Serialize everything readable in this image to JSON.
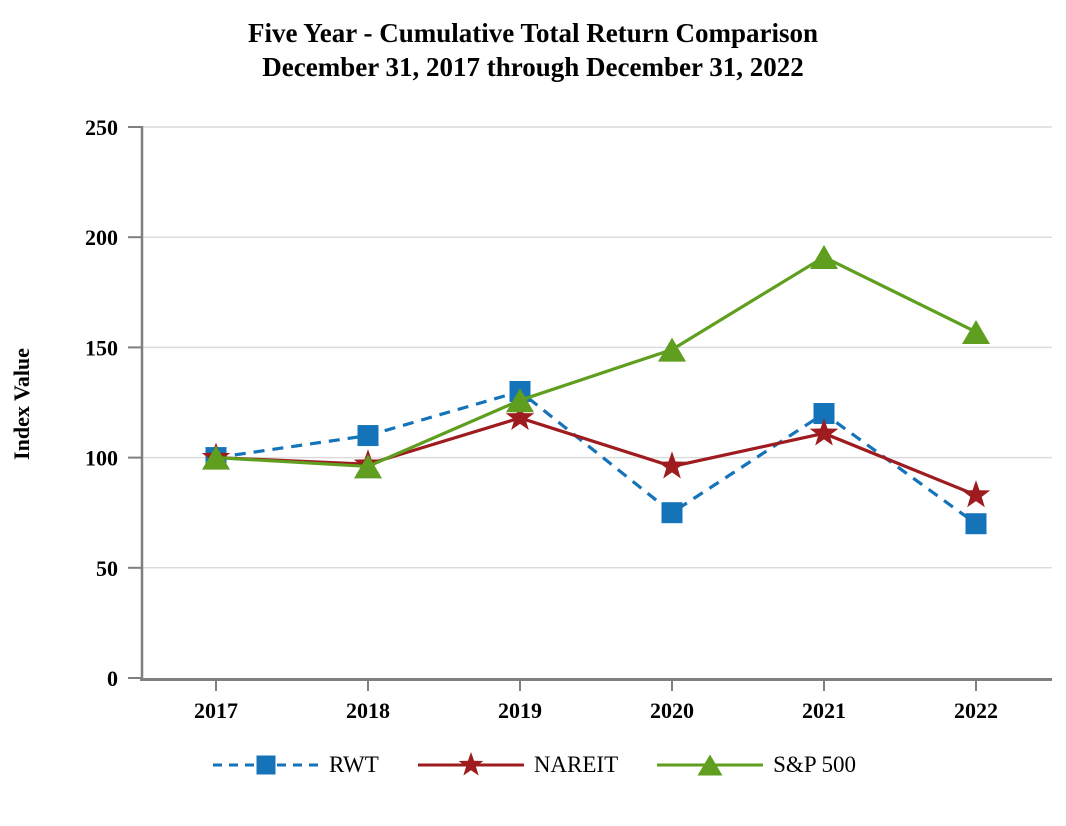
{
  "title": {
    "line1": "Five Year - Cumulative Total Return Comparison",
    "line2": "December 31, 2017 through December 31, 2022"
  },
  "chart_data": {
    "type": "line",
    "categories": [
      "2017",
      "2018",
      "2019",
      "2020",
      "2021",
      "2022"
    ],
    "series": [
      {
        "name": "RWT",
        "values": [
          100,
          110,
          130,
          75,
          120,
          70
        ],
        "color": "#1473b9",
        "line_style": "dashed",
        "marker": "square"
      },
      {
        "name": "NAREIT",
        "values": [
          100,
          97,
          118,
          96,
          111,
          83
        ],
        "color": "#9e1c1f",
        "line_style": "solid",
        "marker": "star"
      },
      {
        "name": "S&P 500",
        "values": [
          100,
          96,
          126,
          149,
          191,
          157
        ],
        "color": "#5f9e1e",
        "line_style": "solid",
        "marker": "triangle"
      }
    ],
    "ylabel": "Index Value",
    "xlabel": "",
    "ylim": [
      0,
      250
    ],
    "yticks": [
      0,
      50,
      100,
      150,
      200,
      250
    ],
    "grid": true,
    "legend_position": "bottom",
    "axis_color": "#7f7f7f",
    "gridline_color": "#dcdcdc",
    "text_color": "#000000"
  }
}
